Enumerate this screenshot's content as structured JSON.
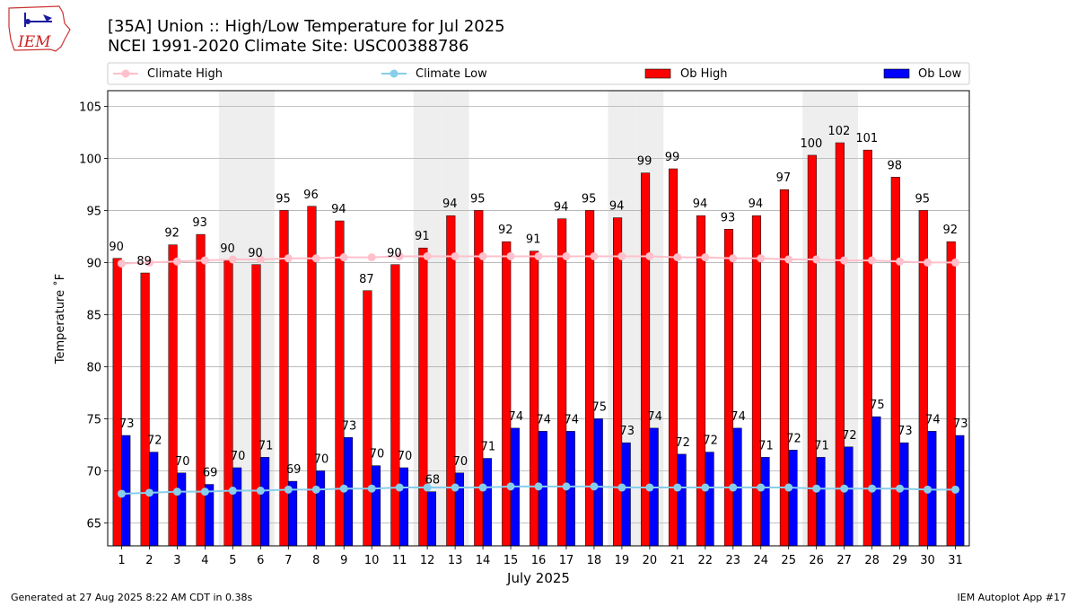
{
  "header": {
    "logo_text": "IEM",
    "title_line1": "[35A] Union :: High/Low Temperature for Jul 2025",
    "title_line2": "NCEI 1991-2020 Climate Site: USC00388786"
  },
  "footer": {
    "left": "Generated at 27 Aug 2025 8:22 AM CDT in 0.38s",
    "right": "IEM Autoplot App #17"
  },
  "colors": {
    "ob_high": "#ff0000",
    "ob_low": "#0000ff",
    "climate_high": "#ffc0cb",
    "climate_low": "#87ceeb",
    "weekend_shade": "#eeeeee",
    "grid": "#b0b0b0"
  },
  "chart_data": {
    "type": "bar",
    "xlabel": "July 2025",
    "ylabel": "Temperature ˚F",
    "ylim": [
      62.8,
      106.5
    ],
    "yticks": [
      65,
      70,
      75,
      80,
      85,
      90,
      95,
      100,
      105
    ],
    "grid": true,
    "legend_placement": "top",
    "legend": [
      "Climate High",
      "Climate Low",
      "Ob High",
      "Ob Low"
    ],
    "categories": [
      1,
      2,
      3,
      4,
      5,
      6,
      7,
      8,
      9,
      10,
      11,
      12,
      13,
      14,
      15,
      16,
      17,
      18,
      19,
      20,
      21,
      22,
      23,
      24,
      25,
      26,
      27,
      28,
      29,
      30,
      31
    ],
    "shaded_days": [
      5,
      6,
      12,
      13,
      19,
      20,
      26,
      27
    ],
    "ob_high": [
      90,
      89,
      92,
      93,
      90,
      90,
      95,
      96,
      94,
      87,
      90,
      91,
      94,
      95,
      92,
      91,
      94,
      95,
      94,
      99,
      99,
      94,
      93,
      94,
      97,
      100,
      102,
      101,
      98,
      95,
      92
    ],
    "ob_high_plotted": [
      90.4,
      89.0,
      91.7,
      92.7,
      90.2,
      89.8,
      95.0,
      95.4,
      94.0,
      87.3,
      89.8,
      91.4,
      94.5,
      95.0,
      92.0,
      91.1,
      94.2,
      95.0,
      94.3,
      98.6,
      99.0,
      94.5,
      93.2,
      94.5,
      97.0,
      100.3,
      101.5,
      100.8,
      98.2,
      95.0,
      92.0
    ],
    "ob_low": [
      73,
      72,
      70,
      69,
      70,
      71,
      69,
      70,
      73,
      70,
      70,
      68,
      70,
      71,
      74,
      74,
      74,
      75,
      73,
      74,
      72,
      72,
      74,
      71,
      72,
      71,
      72,
      75,
      73,
      74,
      73
    ],
    "ob_low_plotted": [
      73.4,
      71.8,
      69.8,
      68.7,
      70.3,
      71.3,
      69.0,
      70.0,
      73.2,
      70.5,
      70.3,
      68.0,
      69.8,
      71.2,
      74.1,
      73.8,
      73.8,
      75.0,
      72.7,
      74.1,
      71.6,
      71.8,
      74.1,
      71.3,
      72.0,
      71.3,
      72.3,
      75.2,
      72.7,
      73.8,
      73.4
    ],
    "climate_high": [
      89.9,
      90.0,
      90.1,
      90.2,
      90.3,
      90.3,
      90.4,
      90.4,
      90.5,
      90.5,
      90.6,
      90.6,
      90.6,
      90.6,
      90.6,
      90.6,
      90.6,
      90.6,
      90.6,
      90.6,
      90.5,
      90.5,
      90.4,
      90.4,
      90.3,
      90.3,
      90.2,
      90.2,
      90.1,
      90.0,
      90.0
    ],
    "climate_low": [
      67.8,
      67.9,
      68.0,
      68.0,
      68.1,
      68.1,
      68.2,
      68.2,
      68.3,
      68.3,
      68.4,
      68.4,
      68.4,
      68.4,
      68.5,
      68.5,
      68.5,
      68.5,
      68.4,
      68.4,
      68.4,
      68.4,
      68.4,
      68.4,
      68.4,
      68.3,
      68.3,
      68.3,
      68.3,
      68.2,
      68.2
    ]
  }
}
